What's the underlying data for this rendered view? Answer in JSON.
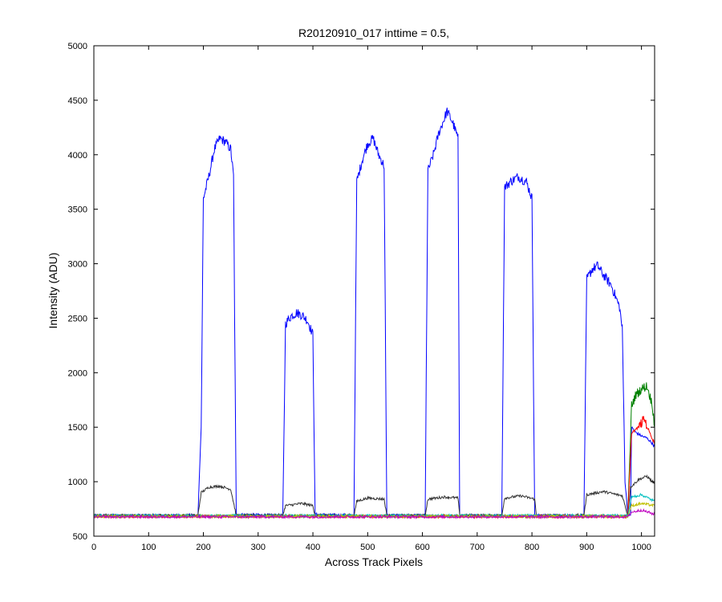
{
  "chart_data": {
    "type": "line",
    "title": "R20120910_017 inttime = 0.5,",
    "xlabel": "Across Track Pixels",
    "ylabel": "Intensity (ADU)",
    "xlim": [
      0,
      1024
    ],
    "ylim": [
      500,
      5000
    ],
    "xticks": [
      0,
      100,
      200,
      300,
      400,
      500,
      600,
      700,
      800,
      900,
      1000
    ],
    "yticks": [
      500,
      1000,
      1500,
      2000,
      2500,
      3000,
      3500,
      4000,
      4500,
      5000
    ],
    "grid": false,
    "baseline": 685,
    "series": [
      {
        "color": "#0000ff",
        "points": [
          [
            0,
            690
          ],
          [
            190,
            690
          ],
          [
            196,
            1500
          ],
          [
            200,
            3600
          ],
          [
            210,
            3800
          ],
          [
            220,
            4050
          ],
          [
            230,
            4150
          ],
          [
            240,
            4120
          ],
          [
            250,
            4050
          ],
          [
            255,
            3800
          ],
          [
            260,
            700
          ],
          [
            345,
            690
          ],
          [
            350,
            2450
          ],
          [
            360,
            2520
          ],
          [
            370,
            2550
          ],
          [
            380,
            2530
          ],
          [
            390,
            2480
          ],
          [
            400,
            2350
          ],
          [
            404,
            700
          ],
          [
            475,
            690
          ],
          [
            480,
            3750
          ],
          [
            490,
            3950
          ],
          [
            500,
            4100
          ],
          [
            510,
            4150
          ],
          [
            520,
            4000
          ],
          [
            530,
            3900
          ],
          [
            535,
            690
          ],
          [
            605,
            690
          ],
          [
            610,
            3850
          ],
          [
            620,
            4000
          ],
          [
            630,
            4200
          ],
          [
            645,
            4400
          ],
          [
            655,
            4300
          ],
          [
            665,
            4150
          ],
          [
            668,
            690
          ],
          [
            745,
            690
          ],
          [
            750,
            3700
          ],
          [
            760,
            3750
          ],
          [
            775,
            3800
          ],
          [
            790,
            3750
          ],
          [
            800,
            3600
          ],
          [
            805,
            690
          ],
          [
            895,
            690
          ],
          [
            900,
            2850
          ],
          [
            910,
            2950
          ],
          [
            920,
            2980
          ],
          [
            930,
            2900
          ],
          [
            945,
            2800
          ],
          [
            960,
            2600
          ],
          [
            965,
            2400
          ],
          [
            970,
            1000
          ],
          [
            975,
            700
          ],
          [
            980,
            690
          ],
          [
            982,
            1500
          ],
          [
            990,
            1450
          ],
          [
            1000,
            1420
          ],
          [
            1010,
            1400
          ],
          [
            1020,
            1350
          ],
          [
            1024,
            1320
          ]
        ]
      },
      {
        "color": "#333333",
        "points": [
          [
            0,
            690
          ],
          [
            190,
            690
          ],
          [
            196,
            900
          ],
          [
            210,
            950
          ],
          [
            230,
            960
          ],
          [
            250,
            930
          ],
          [
            260,
            690
          ],
          [
            345,
            690
          ],
          [
            350,
            780
          ],
          [
            380,
            800
          ],
          [
            400,
            780
          ],
          [
            404,
            690
          ],
          [
            475,
            690
          ],
          [
            480,
            820
          ],
          [
            500,
            850
          ],
          [
            530,
            840
          ],
          [
            535,
            690
          ],
          [
            605,
            690
          ],
          [
            610,
            840
          ],
          [
            640,
            860
          ],
          [
            665,
            850
          ],
          [
            668,
            690
          ],
          [
            745,
            690
          ],
          [
            750,
            850
          ],
          [
            780,
            870
          ],
          [
            805,
            840
          ],
          [
            808,
            690
          ],
          [
            895,
            690
          ],
          [
            900,
            880
          ],
          [
            930,
            910
          ],
          [
            965,
            870
          ],
          [
            975,
            690
          ],
          [
            980,
            950
          ],
          [
            995,
            1020
          ],
          [
            1010,
            1050
          ],
          [
            1024,
            980
          ]
        ]
      },
      {
        "color": "#008000",
        "points": [
          [
            0,
            685
          ],
          [
            975,
            685
          ],
          [
            982,
            1700
          ],
          [
            990,
            1800
          ],
          [
            1000,
            1850
          ],
          [
            1010,
            1880
          ],
          [
            1020,
            1700
          ],
          [
            1024,
            1500
          ]
        ]
      },
      {
        "color": "#ff0000",
        "points": [
          [
            0,
            680
          ],
          [
            975,
            680
          ],
          [
            982,
            1450
          ],
          [
            995,
            1500
          ],
          [
            1005,
            1580
          ],
          [
            1015,
            1450
          ],
          [
            1024,
            1350
          ]
        ]
      },
      {
        "color": "#00bfbf",
        "points": [
          [
            0,
            688
          ],
          [
            975,
            688
          ],
          [
            982,
            860
          ],
          [
            1000,
            880
          ],
          [
            1024,
            820
          ]
        ]
      },
      {
        "color": "#bfbf00",
        "points": [
          [
            0,
            682
          ],
          [
            975,
            682
          ],
          [
            982,
            780
          ],
          [
            1000,
            800
          ],
          [
            1024,
            780
          ]
        ]
      },
      {
        "color": "#bf00bf",
        "points": [
          [
            0,
            678
          ],
          [
            975,
            678
          ],
          [
            982,
            720
          ],
          [
            1000,
            740
          ],
          [
            1024,
            700
          ]
        ]
      }
    ]
  }
}
